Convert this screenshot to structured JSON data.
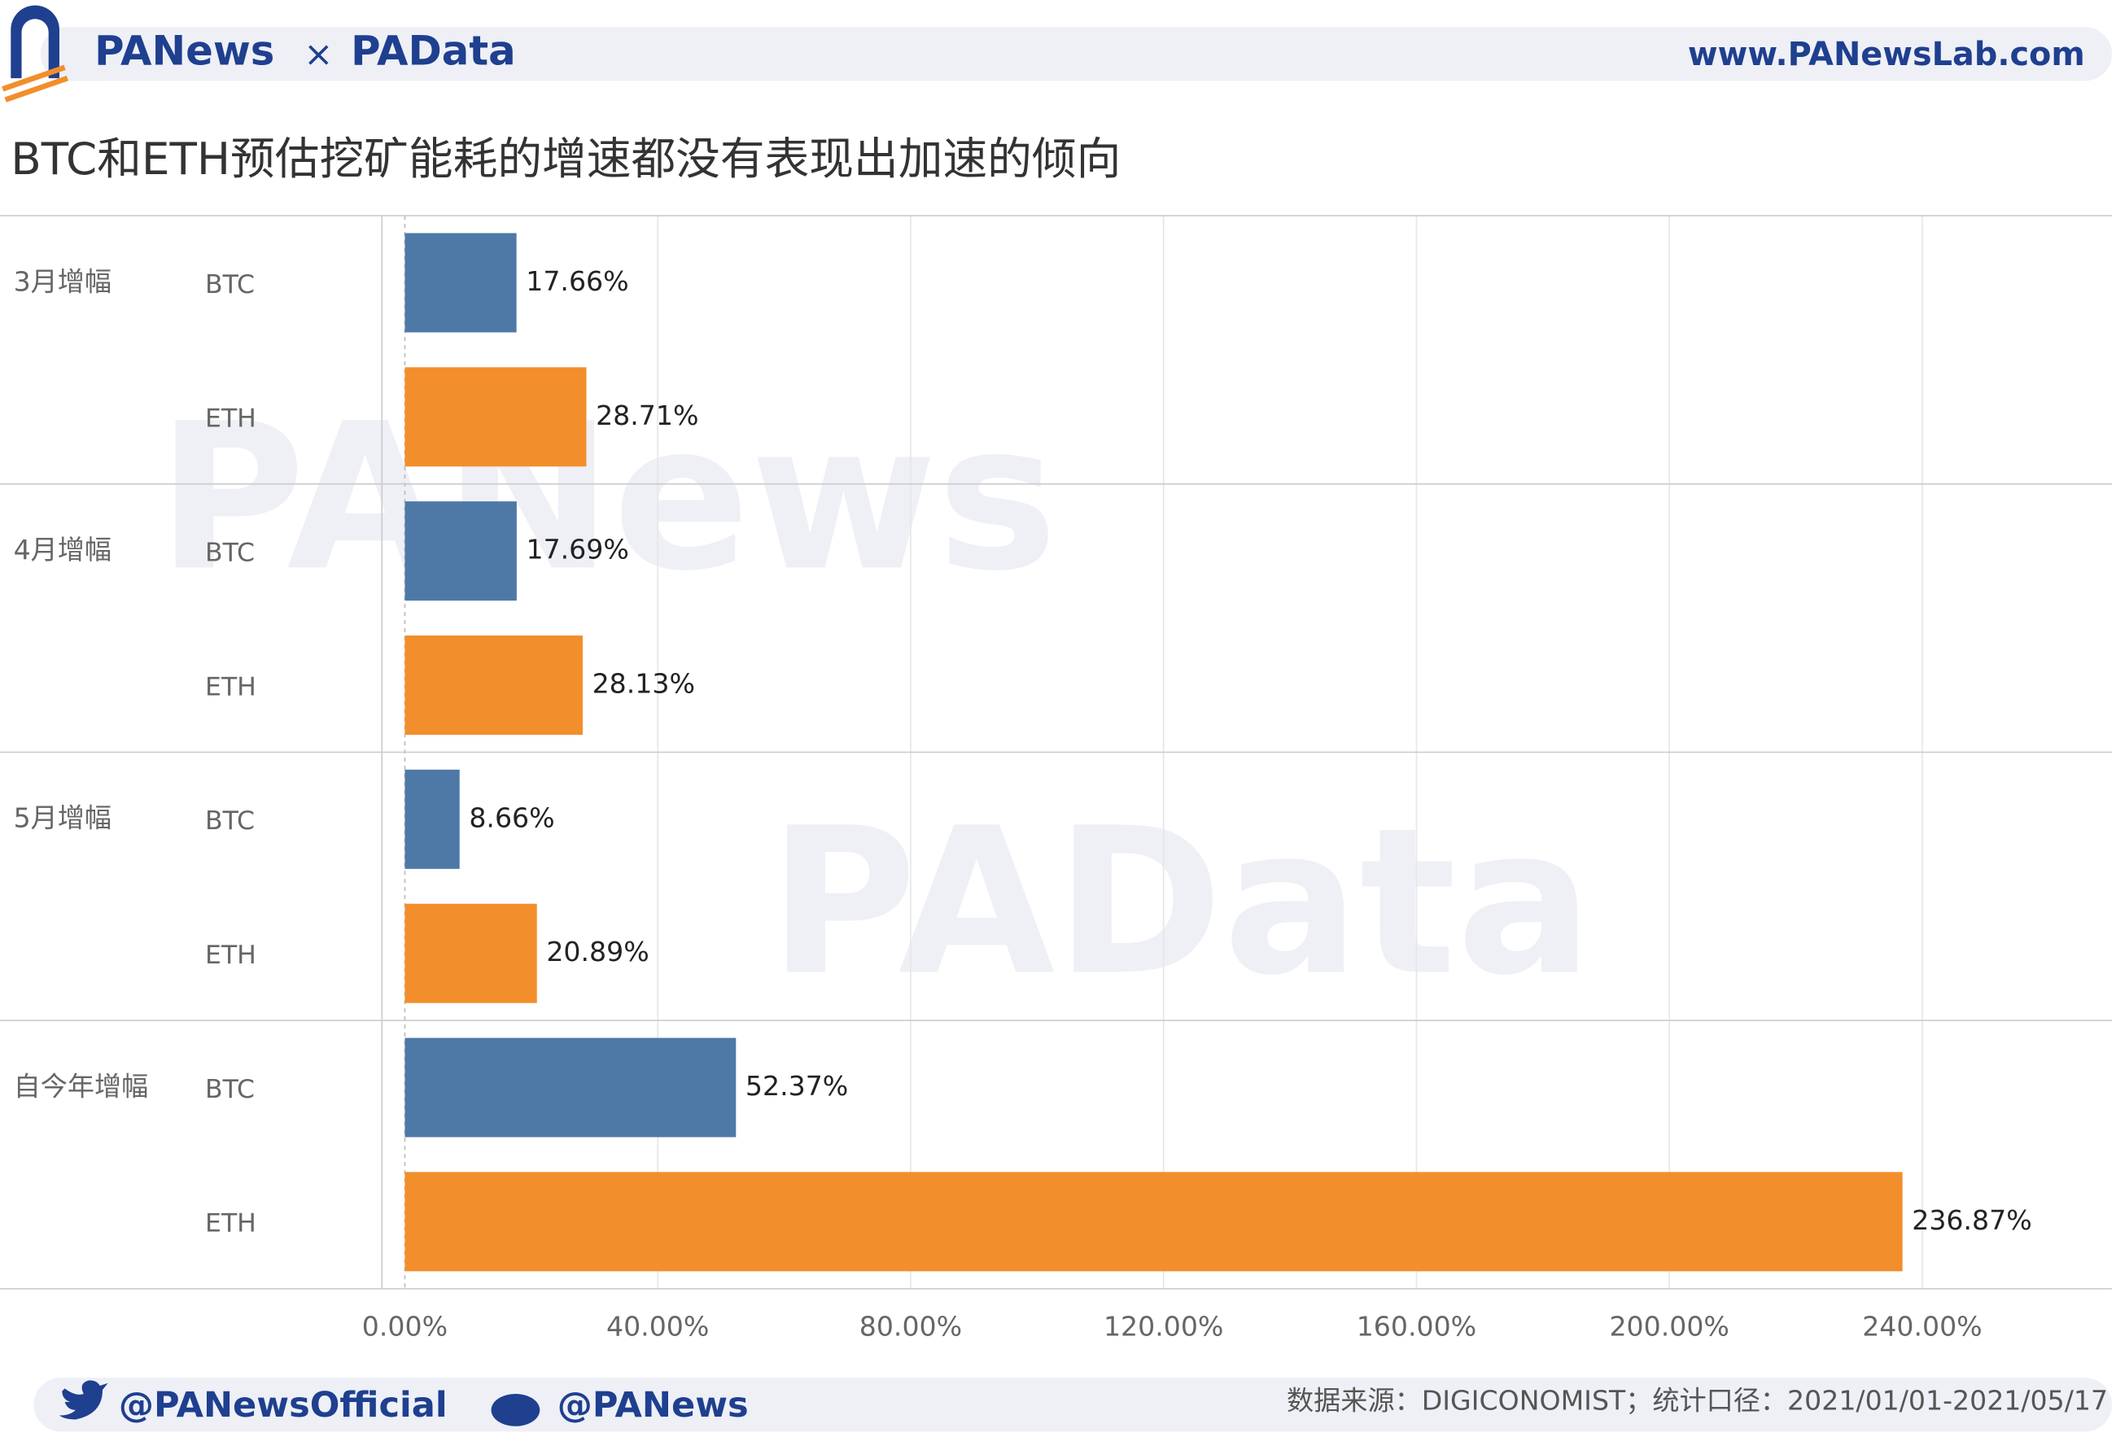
{
  "header": {
    "brand_left": "PANews",
    "cross": "×",
    "brand_right": "PAData",
    "website": "www.PANewsLab.com"
  },
  "chart_data": {
    "type": "bar",
    "orientation": "horizontal",
    "title": "BTC和ETH预估挖矿能耗的增速都没有表现出加速的倾向",
    "categories": [
      "3月增幅",
      "4月增幅",
      "5月增幅",
      "自今年增幅"
    ],
    "series": [
      {
        "name": "BTC",
        "color": "#4e79a7",
        "values": [
          17.66,
          17.69,
          8.66,
          52.37
        ],
        "value_labels": [
          "17.66%",
          "17.69%",
          "8.66%",
          "52.37%"
        ]
      },
      {
        "name": "ETH",
        "color": "#f28e2b",
        "values": [
          28.71,
          28.13,
          20.89,
          236.87
        ],
        "value_labels": [
          "28.71%",
          "28.13%",
          "20.89%",
          "236.87%"
        ]
      }
    ],
    "xlim": [
      0,
      270
    ],
    "xticks": [
      {
        "value": 0,
        "label": "0.00%"
      },
      {
        "value": 40,
        "label": "40.00%"
      },
      {
        "value": 80,
        "label": "80.00%"
      },
      {
        "value": 120,
        "label": "120.00%"
      },
      {
        "value": 160,
        "label": "160.00%"
      },
      {
        "value": 200,
        "label": "200.00%"
      },
      {
        "value": 240,
        "label": "240.00%"
      }
    ],
    "grid": true
  },
  "watermarks": [
    "PANews",
    "PAData"
  ],
  "footer": {
    "twitter": "@PANewsOfficial",
    "weibo": "@PANews",
    "source": "数据来源：DIGICONOMIST；统计口径：2021/01/01-2021/05/17"
  }
}
